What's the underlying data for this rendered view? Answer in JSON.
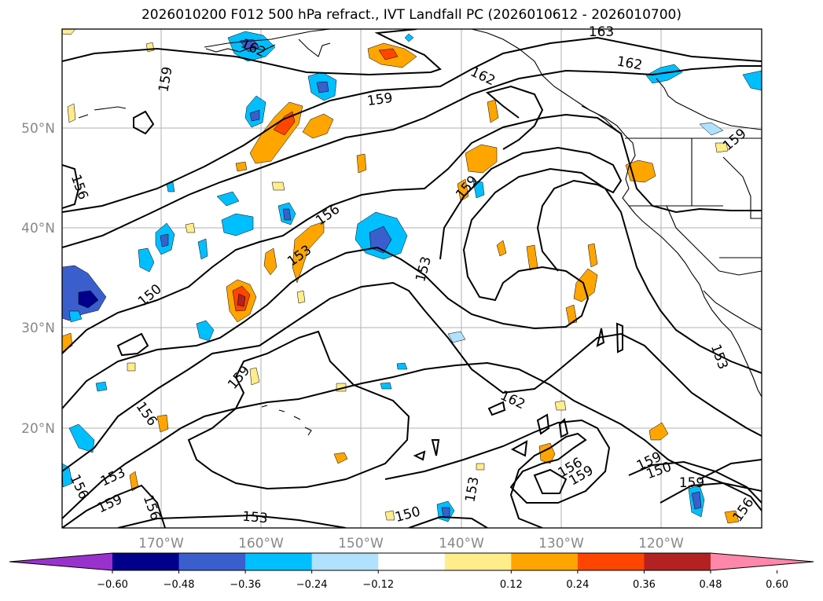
{
  "title": "2026010200 F012 500 hPa refract., IVT Landfall PC (2026010612 - 2026010700)",
  "lat_labels": [
    "50°N",
    "40°N",
    "30°N",
    "20°N"
  ],
  "lon_labels": [
    "170°W",
    "160°W",
    "150°W",
    "140°W",
    "130°W",
    "120°W"
  ],
  "colorbar": {
    "colors": [
      "#9932cc",
      "#00008b",
      "#3a5fcd",
      "#00bfff",
      "#b0e2ff",
      "#ffffff",
      "#ffec8b",
      "#ffa500",
      "#ff4500",
      "#b22222",
      "#ff88aa"
    ],
    "tick_labels": [
      "−0.60",
      "−0.48",
      "−0.36",
      "−0.24",
      "−0.12",
      "0.12",
      "0.24",
      "0.36",
      "0.48",
      "0.60"
    ]
  },
  "contour_labels": [
    "163",
    "162",
    "162",
    "159",
    "162",
    "159",
    "156",
    "159",
    "159",
    "156",
    "153",
    "153",
    "150",
    "159",
    "156",
    "162",
    "153",
    "156",
    "159",
    "156",
    "153",
    "150",
    "153",
    "156",
    "159",
    "159",
    "150",
    "159",
    "156",
    "153"
  ]
}
